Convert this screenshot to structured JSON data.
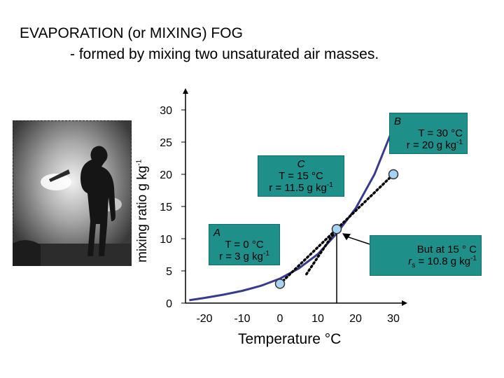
{
  "header": {
    "title": "EVAPORATION (or MIXING) FOG",
    "subtitle": "- formed by mixing two unsaturated air masses."
  },
  "photo": {
    "subject": "silhouette-of-hiker-in-fog"
  },
  "chart_data": {
    "type": "line",
    "xlabel": "Temperature °C",
    "ylabel_text": "mixing ratio g kg",
    "ylabel_sup": "-1",
    "x_ticks": [
      -20,
      -10,
      0,
      10,
      20,
      30
    ],
    "y_ticks": [
      0,
      5,
      10,
      15,
      20,
      25,
      30
    ],
    "xlim": [
      -25,
      32
    ],
    "ylim": [
      0,
      30
    ],
    "grid": false,
    "colors": {
      "curve": "#3a3a8c",
      "annotation": "#1f8f8a",
      "point": "#a9d3f2"
    },
    "series": [
      {
        "kind": "saturation-curve",
        "x": [
          -24,
          -20,
          -15,
          -10,
          -5,
          0,
          5,
          10,
          15,
          20,
          25,
          30
        ],
        "y": [
          0.45,
          0.8,
          1.3,
          1.9,
          2.7,
          3.8,
          5.4,
          7.6,
          10.8,
          14.7,
          20.0,
          27.3
        ]
      }
    ],
    "points": [
      {
        "id": "A",
        "x": 0,
        "y": 3
      },
      {
        "id": "C",
        "x": 15,
        "y": 11.5
      },
      {
        "id": "B",
        "x": 30,
        "y": 20
      }
    ],
    "mixing_line": [
      [
        0,
        3
      ],
      [
        30,
        20
      ]
    ],
    "tangent_line": [
      [
        7,
        4.5
      ],
      [
        15,
        11.5
      ]
    ],
    "vertical_marker": {
      "x": 15,
      "y": [
        0,
        11.5
      ]
    },
    "annotations": {
      "A": {
        "name": "A",
        "line1": "T = 0 °C",
        "line2_base": "r = 3 g kg",
        "line2_sup": "-1"
      },
      "B": {
        "name": "B",
        "line1": "T = 30 °C",
        "line2_base": "r = 20 g kg",
        "line2_sup": "-1"
      },
      "C": {
        "name": "C",
        "line1": "T = 15 °C",
        "line2_base": "r = 11.5 g kg",
        "line2_sup": "-1"
      },
      "S": {
        "line1": "But at 15 ° C",
        "line2_r": "r",
        "line2_sub": "s",
        "line2_base": " = 10.8 g kg",
        "line2_sup": "-1"
      }
    }
  }
}
